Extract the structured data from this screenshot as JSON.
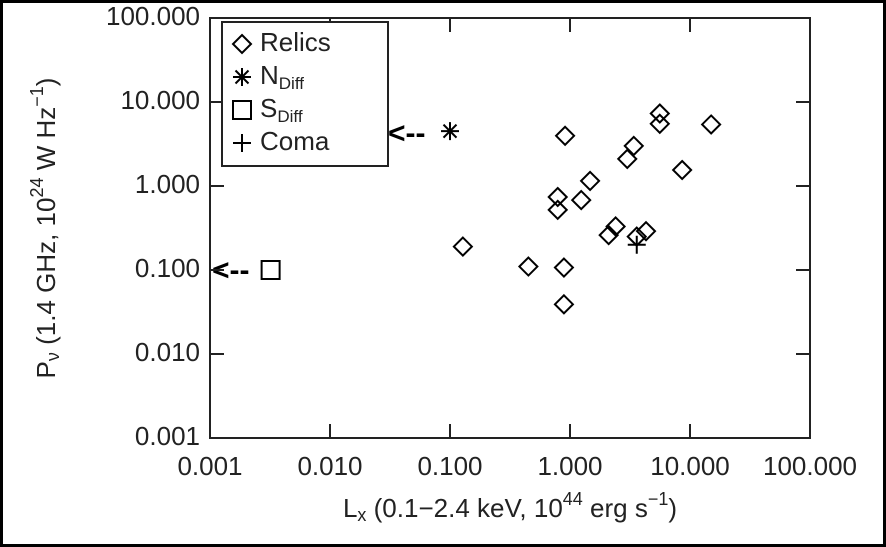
{
  "chart_data": {
    "type": "scatter",
    "xlabel_parts": [
      "L",
      "x",
      " (0.1−2.4 keV, 10",
      "44",
      " erg s",
      "−1",
      ")"
    ],
    "ylabel_parts": [
      "P",
      "ν",
      " (1.4 GHz, 10",
      "24",
      " W Hz",
      "−1",
      ")"
    ],
    "xscale": "log",
    "yscale": "log",
    "xlim": [
      0.001,
      100
    ],
    "ylim": [
      0.001,
      100
    ],
    "xticks": [
      0.001,
      {
        "value": 0.01,
        "label": "0.010"
      },
      {
        "value": 0.1,
        "label": "0.100"
      },
      {
        "value": 1,
        "label": "1.000"
      },
      {
        "value": 10,
        "label": "10.000"
      },
      {
        "value": 100,
        "label": "100.000"
      }
    ],
    "yticks": [
      0.001,
      {
        "value": 0.01,
        "label": "0.010"
      },
      {
        "value": 0.1,
        "label": "0.100"
      },
      {
        "value": 1,
        "label": "1.000"
      },
      {
        "value": 10,
        "label": "10.000"
      },
      {
        "value": 100,
        "label": "100.000"
      }
    ],
    "legend": "upper left",
    "series": [
      {
        "name": "Relics",
        "marker": "diamond",
        "color": "#000000",
        "x": [
          0.128,
          0.45,
          0.89,
          0.89,
          0.91,
          0.79,
          0.79,
          1.24,
          1.47,
          2.1,
          2.4,
          3.0,
          3.4,
          3.6,
          4.3,
          5.6,
          5.6,
          8.6,
          15
        ],
        "y": [
          0.19,
          0.11,
          0.107,
          0.039,
          3.96,
          0.74,
          0.52,
          0.68,
          1.15,
          0.26,
          0.33,
          2.1,
          3.0,
          0.25,
          0.29,
          7.3,
          5.5,
          1.55,
          5.4
        ]
      },
      {
        "name": "N",
        "subscript": "Diff",
        "marker": "asterisk",
        "color": "#000000",
        "x": [
          0.1
        ],
        "y": [
          4.5
        ]
      },
      {
        "name": "S",
        "subscript": "Diff",
        "marker": "square",
        "color": "#000000",
        "x": [
          0.0032
        ],
        "y": [
          0.1
        ]
      },
      {
        "name": "Coma",
        "marker": "plus",
        "color": "#000000",
        "x": [
          3.6
        ],
        "y": [
          0.2
        ]
      }
    ],
    "annotations": [
      {
        "text": "<--"
      },
      {
        "text": "<--"
      }
    ]
  }
}
